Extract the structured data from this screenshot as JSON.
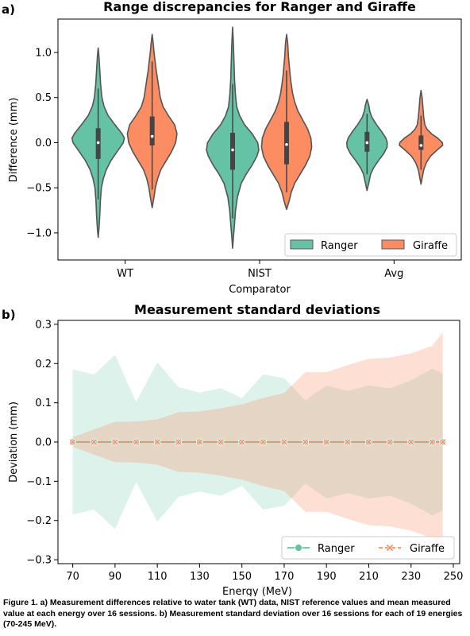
{
  "caption": "Figure 1. a) Measurement differences relative to water tank (WT) data, NIST reference values and mean measured value at each energy over 16 sessions. b) Measurement standard deviation over 16 sessions for each of 19 energies (70-245 MeV).",
  "colors": {
    "ranger": "#66c2a5",
    "giraffe": "#fc8d62",
    "edge": "#545454",
    "box": "#454545"
  },
  "chart_data": [
    {
      "type": "violin",
      "panel_label": "a)",
      "title": "Range discrepancies for Ranger and Giraffe",
      "xlabel": "Comparator",
      "ylabel": "Difference (mm)",
      "categories": [
        "WT",
        "NIST",
        "Avg"
      ],
      "ylim": [
        -1.3,
        1.37
      ],
      "yticks": [
        -1.0,
        -0.5,
        0.0,
        0.5,
        1.0
      ],
      "ytick_labels": [
        "−1.0",
        "−0.5",
        "0.0",
        "0.5",
        "1.0"
      ],
      "legend": {
        "placement": "lower-right",
        "ncol": 2
      },
      "series": [
        {
          "name": "Ranger",
          "color": "#66c2a5",
          "groups": [
            {
              "category": "WT",
              "min": -1.05,
              "max": 1.05,
              "q1": -0.18,
              "median": 0.0,
              "q3": 0.16,
              "whisker": [
                -0.63,
                0.6
              ],
              "profile": [
                [
                  -1.05,
                  0.0
                ],
                [
                  -0.95,
                  0.03
                ],
                [
                  -0.8,
                  0.06
                ],
                [
                  -0.65,
                  0.08
                ],
                [
                  -0.5,
                  0.12
                ],
                [
                  -0.4,
                  0.19
                ],
                [
                  -0.3,
                  0.3
                ],
                [
                  -0.2,
                  0.47
                ],
                [
                  -0.1,
                  0.7
                ],
                [
                  0.0,
                  0.93
                ],
                [
                  0.05,
                  0.97
                ],
                [
                  0.1,
                  0.88
                ],
                [
                  0.2,
                  0.62
                ],
                [
                  0.3,
                  0.37
                ],
                [
                  0.4,
                  0.22
                ],
                [
                  0.5,
                  0.14
                ],
                [
                  0.65,
                  0.09
                ],
                [
                  0.8,
                  0.06
                ],
                [
                  0.95,
                  0.03
                ],
                [
                  1.05,
                  0.0
                ]
              ]
            },
            {
              "category": "NIST",
              "min": -1.17,
              "max": 1.28,
              "q1": -0.3,
              "median": -0.08,
              "q3": 0.11,
              "whisker": [
                -0.84,
                0.65
              ],
              "profile": [
                [
                  -1.17,
                  0.0
                ],
                [
                  -1.05,
                  0.03
                ],
                [
                  -0.9,
                  0.07
                ],
                [
                  -0.75,
                  0.11
                ],
                [
                  -0.6,
                  0.18
                ],
                [
                  -0.45,
                  0.32
                ],
                [
                  -0.35,
                  0.5
                ],
                [
                  -0.25,
                  0.72
                ],
                [
                  -0.15,
                  0.9
                ],
                [
                  -0.08,
                  0.97
                ],
                [
                  0.0,
                  0.93
                ],
                [
                  0.1,
                  0.72
                ],
                [
                  0.2,
                  0.44
                ],
                [
                  0.3,
                  0.26
                ],
                [
                  0.4,
                  0.15
                ],
                [
                  0.55,
                  0.1
                ],
                [
                  0.7,
                  0.07
                ],
                [
                  0.9,
                  0.05
                ],
                [
                  1.1,
                  0.03
                ],
                [
                  1.28,
                  0.0
                ]
              ]
            },
            {
              "category": "Avg",
              "min": -0.53,
              "max": 0.48,
              "q1": -0.1,
              "median": 0.0,
              "q3": 0.12,
              "whisker": [
                -0.35,
                0.32
              ],
              "profile": [
                [
                  -0.53,
                  0.0
                ],
                [
                  -0.45,
                  0.06
                ],
                [
                  -0.35,
                  0.13
                ],
                [
                  -0.28,
                  0.24
                ],
                [
                  -0.2,
                  0.42
                ],
                [
                  -0.12,
                  0.62
                ],
                [
                  -0.05,
                  0.74
                ],
                [
                  0.0,
                  0.75
                ],
                [
                  0.05,
                  0.7
                ],
                [
                  0.12,
                  0.55
                ],
                [
                  0.2,
                  0.35
                ],
                [
                  0.28,
                  0.18
                ],
                [
                  0.35,
                  0.1
                ],
                [
                  0.42,
                  0.06
                ],
                [
                  0.48,
                  0.0
                ]
              ]
            }
          ]
        },
        {
          "name": "Giraffe",
          "color": "#fc8d62",
          "groups": [
            {
              "category": "WT",
              "min": -0.72,
              "max": 1.2,
              "q1": -0.03,
              "median": 0.07,
              "q3": 0.29,
              "whisker": [
                -0.52,
                0.9
              ],
              "profile": [
                [
                  -0.72,
                  0.0
                ],
                [
                  -0.6,
                  0.07
                ],
                [
                  -0.5,
                  0.12
                ],
                [
                  -0.4,
                  0.2
                ],
                [
                  -0.3,
                  0.32
                ],
                [
                  -0.2,
                  0.52
                ],
                [
                  -0.1,
                  0.72
                ],
                [
                  0.0,
                  0.87
                ],
                [
                  0.1,
                  0.92
                ],
                [
                  0.2,
                  0.83
                ],
                [
                  0.3,
                  0.6
                ],
                [
                  0.4,
                  0.4
                ],
                [
                  0.5,
                  0.3
                ],
                [
                  0.6,
                  0.25
                ],
                [
                  0.7,
                  0.2
                ],
                [
                  0.8,
                  0.15
                ],
                [
                  0.9,
                  0.11
                ],
                [
                  1.0,
                  0.07
                ],
                [
                  1.1,
                  0.04
                ],
                [
                  1.2,
                  0.0
                ]
              ]
            },
            {
              "category": "NIST",
              "min": -0.74,
              "max": 1.2,
              "q1": -0.24,
              "median": -0.02,
              "q3": 0.23,
              "whisker": [
                -0.55,
                0.8
              ],
              "profile": [
                [
                  -0.74,
                  0.0
                ],
                [
                  -0.65,
                  0.09
                ],
                [
                  -0.55,
                  0.17
                ],
                [
                  -0.45,
                  0.3
                ],
                [
                  -0.35,
                  0.5
                ],
                [
                  -0.25,
                  0.7
                ],
                [
                  -0.15,
                  0.86
                ],
                [
                  -0.05,
                  0.93
                ],
                [
                  0.05,
                  0.9
                ],
                [
                  0.15,
                  0.78
                ],
                [
                  0.25,
                  0.6
                ],
                [
                  0.35,
                  0.42
                ],
                [
                  0.45,
                  0.3
                ],
                [
                  0.55,
                  0.22
                ],
                [
                  0.65,
                  0.17
                ],
                [
                  0.75,
                  0.13
                ],
                [
                  0.85,
                  0.1
                ],
                [
                  0.95,
                  0.07
                ],
                [
                  1.1,
                  0.04
                ],
                [
                  1.2,
                  0.0
                ]
              ]
            },
            {
              "category": "Avg",
              "min": -0.46,
              "max": 0.58,
              "q1": -0.08,
              "median": -0.03,
              "q3": 0.08,
              "whisker": [
                -0.3,
                0.3
              ],
              "profile": [
                [
                  -0.46,
                  0.0
                ],
                [
                  -0.38,
                  0.05
                ],
                [
                  -0.3,
                  0.1
                ],
                [
                  -0.22,
                  0.2
                ],
                [
                  -0.15,
                  0.35
                ],
                [
                  -0.08,
                  0.6
                ],
                [
                  -0.03,
                  0.8
                ],
                [
                  0.0,
                  0.79
                ],
                [
                  0.05,
                  0.62
                ],
                [
                  0.1,
                  0.38
                ],
                [
                  0.15,
                  0.22
                ],
                [
                  0.2,
                  0.14
                ],
                [
                  0.28,
                  0.1
                ],
                [
                  0.35,
                  0.08
                ],
                [
                  0.42,
                  0.06
                ],
                [
                  0.5,
                  0.04
                ],
                [
                  0.58,
                  0.0
                ]
              ]
            }
          ]
        }
      ]
    },
    {
      "type": "line",
      "panel_label": "b)",
      "title": "Measurement standard deviations",
      "xlabel": "Energy (MeV)",
      "ylabel": "Deviation (mm)",
      "xlim": [
        63,
        253
      ],
      "ylim": [
        -0.31,
        0.31
      ],
      "xticks": [
        70,
        90,
        110,
        130,
        150,
        170,
        190,
        210,
        230,
        250
      ],
      "yticks": [
        -0.3,
        -0.2,
        -0.1,
        0.0,
        0.1,
        0.2,
        0.3
      ],
      "ytick_labels": [
        "−0.3",
        "−0.2",
        "−0.1",
        "0.0",
        "0.1",
        "0.2",
        "0.3"
      ],
      "legend": {
        "placement": "lower-right",
        "ncol": 2
      },
      "x": [
        70,
        80,
        90,
        100,
        110,
        120,
        130,
        140,
        150,
        160,
        170,
        180,
        190,
        200,
        210,
        220,
        230,
        240,
        245
      ],
      "series": [
        {
          "name": "Ranger",
          "color": "#66c2a5",
          "marker": "circle",
          "values": [
            0,
            0,
            0,
            0,
            0,
            0,
            0,
            0,
            0,
            0,
            0,
            0,
            0,
            0,
            0,
            0,
            0,
            0,
            0
          ],
          "band": [
            0.185,
            0.172,
            0.222,
            0.102,
            0.203,
            0.14,
            0.126,
            0.137,
            0.112,
            0.172,
            0.163,
            0.106,
            0.144,
            0.13,
            0.144,
            0.137,
            0.157,
            0.187,
            0.175
          ]
        },
        {
          "name": "Giraffe",
          "color": "#fc8d62",
          "marker": "x",
          "values": [
            0,
            0,
            0,
            0,
            0,
            0,
            0,
            0,
            0,
            0,
            0,
            0,
            0,
            0,
            0,
            0,
            0,
            0,
            0
          ],
          "band": [
            0.012,
            0.032,
            0.051,
            0.052,
            0.058,
            0.076,
            0.078,
            0.086,
            0.096,
            0.112,
            0.125,
            0.178,
            0.178,
            0.196,
            0.212,
            0.215,
            0.226,
            0.245,
            0.28
          ]
        }
      ]
    }
  ]
}
